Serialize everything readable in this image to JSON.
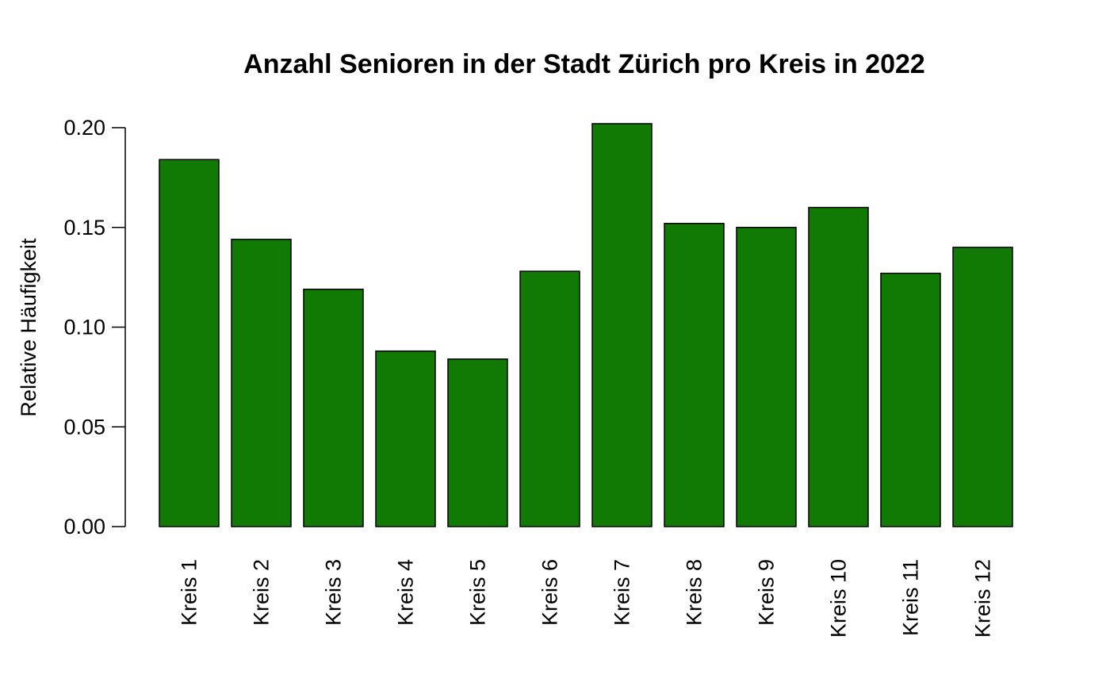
{
  "chart_data": {
    "type": "bar",
    "title": "Anzahl Senioren in der Stadt Zürich pro Kreis in 2022",
    "xlabel": "",
    "ylabel": "Relative Häufigkeit",
    "categories": [
      "Kreis 1",
      "Kreis 2",
      "Kreis 3",
      "Kreis 4",
      "Kreis 5",
      "Kreis 6",
      "Kreis 7",
      "Kreis 8",
      "Kreis 9",
      "Kreis 10",
      "Kreis 11",
      "Kreis 12"
    ],
    "values": [
      0.184,
      0.144,
      0.119,
      0.088,
      0.084,
      0.128,
      0.202,
      0.152,
      0.15,
      0.16,
      0.127,
      0.14
    ],
    "ylim": [
      0,
      0.2
    ],
    "yticks": [
      "0.00",
      "0.05",
      "0.10",
      "0.15",
      "0.20"
    ],
    "bar_color": "#117a05",
    "grid": false,
    "legend": "none"
  }
}
